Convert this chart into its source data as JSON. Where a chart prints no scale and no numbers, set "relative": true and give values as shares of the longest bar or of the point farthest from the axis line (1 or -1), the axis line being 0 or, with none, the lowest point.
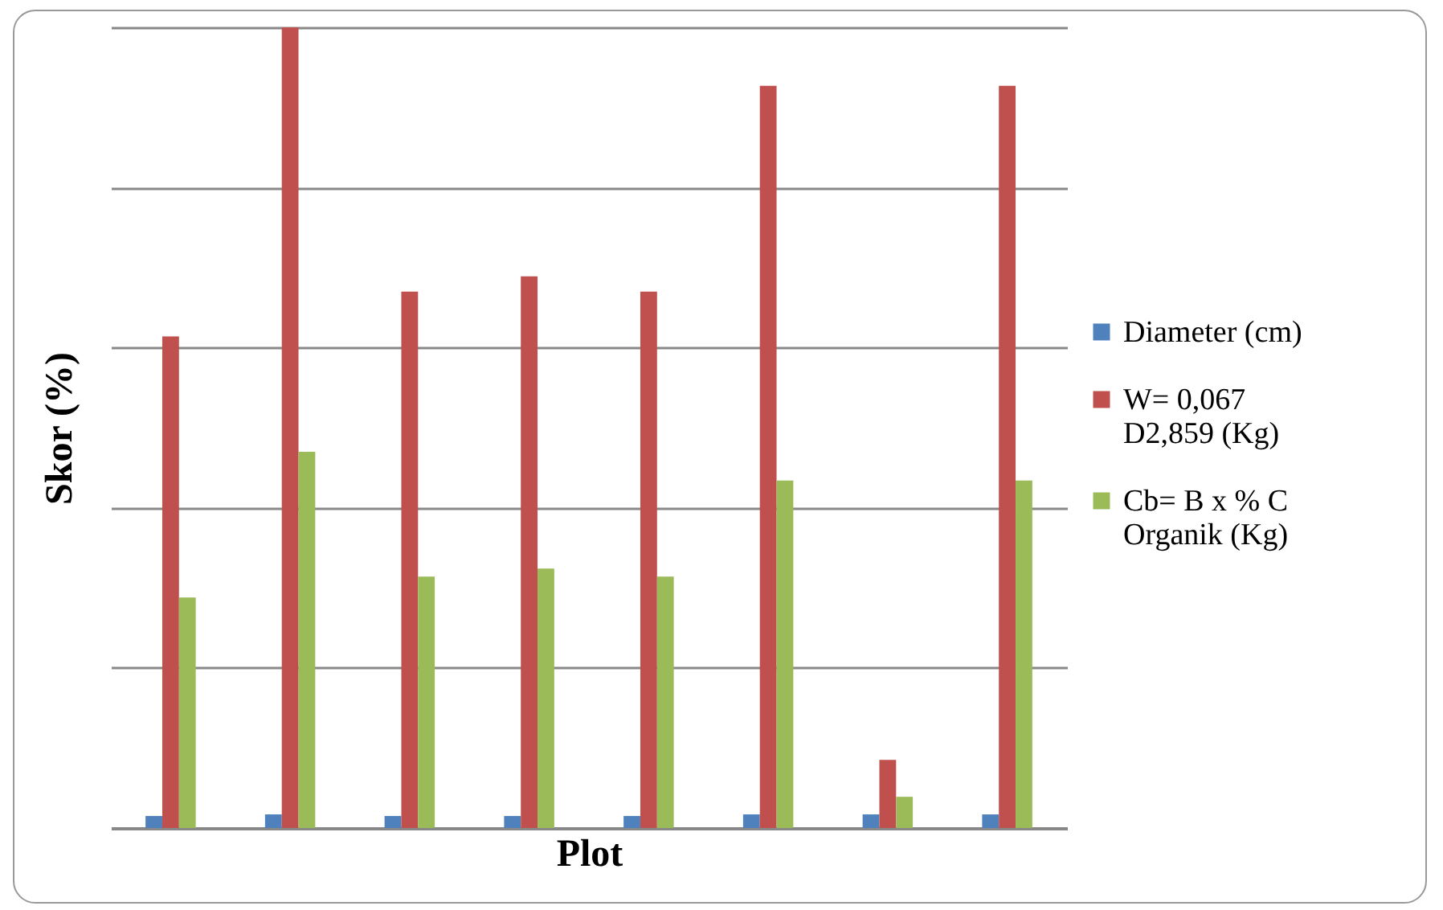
{
  "chart_data": {
    "type": "bar",
    "relative": true,
    "xlabel": "Plot",
    "ylabel": "Skor (%)",
    "grid": "y",
    "legend": "right",
    "categories": [
      null,
      null,
      null,
      null,
      null,
      null,
      null,
      null
    ],
    "series": [
      {
        "name": "Diameter (cm)",
        "color": "#4f81bd",
        "values": [
          0.015,
          0.017,
          0.015,
          0.015,
          0.015,
          0.017,
          0.017,
          0.017
        ]
      },
      {
        "name": "W= 0,067 D2,859 (Kg)",
        "color": "#c0504d",
        "values": [
          0.614,
          1,
          0.67,
          0.689,
          0.67,
          0.927,
          0.085,
          0.927
        ]
      },
      {
        "name": "Cb= B x % C Organik (Kg)",
        "color": "#9bbb59",
        "values": [
          0.288,
          0.47,
          0.314,
          0.324,
          0.314,
          0.434,
          0.039,
          0.434
        ]
      }
    ]
  }
}
